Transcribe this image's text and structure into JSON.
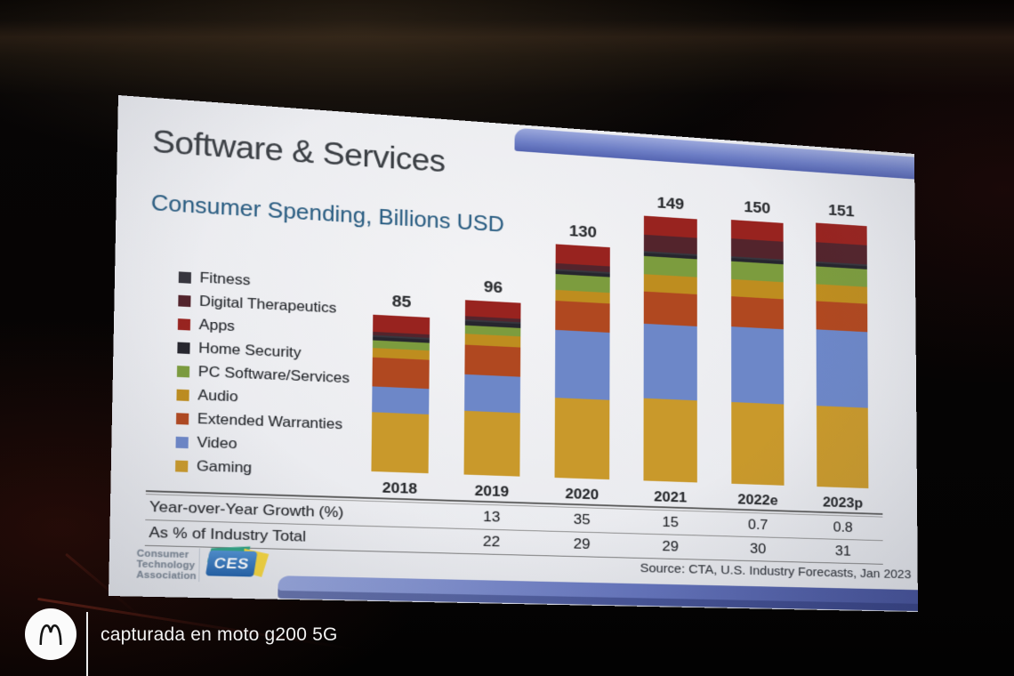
{
  "photo": {
    "watermark": "capturada en moto g200 5G",
    "brand_logo": "motorola-batwing-m"
  },
  "slide": {
    "title": "Software & Services",
    "subtitle": "Consumer Spending, Billions USD",
    "source": "Source: CTA, U.S. Industry Forecasts, Jan 2023",
    "org_logo": {
      "lines": [
        "Consumer",
        "Technology",
        "Association"
      ],
      "ces_text": "CES"
    },
    "accents": {
      "band_blue_light": "#94A3D9",
      "band_blue_dark": "#3E4B95",
      "subtitle_blue": "#2B5F84"
    }
  },
  "chart_data": {
    "type": "bar",
    "stacked": true,
    "title": "Software & Services",
    "subtitle": "Consumer Spending, Billions USD",
    "unit": "Billions USD",
    "categories": [
      "2018",
      "2019",
      "2020",
      "2021",
      "2022e",
      "2023p"
    ],
    "totals": [
      85,
      96,
      130,
      149,
      150,
      151
    ],
    "series": [
      {
        "name": "Gaming",
        "color": "#C9992B",
        "values": [
          32,
          35,
          44,
          46,
          46,
          46
        ]
      },
      {
        "name": "Video",
        "color": "#6D87C8",
        "values": [
          14,
          20,
          38,
          42,
          43,
          44
        ]
      },
      {
        "name": "Extended Warranties",
        "color": "#B04820",
        "values": [
          16,
          16,
          16,
          18,
          17,
          16
        ]
      },
      {
        "name": "Audio",
        "color": "#BE8D1F",
        "values": [
          5,
          6,
          6,
          10,
          10,
          10
        ]
      },
      {
        "name": "PC Software/Services",
        "color": "#7C9C3E",
        "values": [
          4,
          5,
          9,
          10,
          10,
          10
        ]
      },
      {
        "name": "Home Security",
        "color": "#26262E",
        "values": [
          2,
          2,
          2,
          2,
          2,
          2
        ]
      },
      {
        "name": "Fitness",
        "color": "#37363E",
        "values": [
          1,
          1,
          1,
          1,
          1,
          1
        ]
      },
      {
        "name": "Digital Therapeutics",
        "color": "#53242C",
        "values": [
          2,
          2,
          3,
          9,
          10,
          11
        ]
      },
      {
        "name": "Apps",
        "color": "#98231F",
        "values": [
          9,
          9,
          11,
          11,
          11,
          11
        ]
      }
    ],
    "legend_order": [
      "Fitness",
      "Digital Therapeutics",
      "Apps",
      "Home Security",
      "PC Software/Services",
      "Audio",
      "Extended Warranties",
      "Video",
      "Gaming"
    ],
    "legend_position": "left",
    "grid": false,
    "value_labels_on_top": true,
    "table": {
      "rows": [
        {
          "label": "Year-over-Year Growth (%)",
          "values": [
            "",
            "13",
            "35",
            "15",
            "0.7",
            "0.8"
          ]
        },
        {
          "label": "As % of Industry Total",
          "values": [
            "",
            "22",
            "29",
            "29",
            "30",
            "31"
          ]
        }
      ]
    },
    "source": "Source: CTA, U.S. Industry Forecasts, Jan 2023"
  }
}
